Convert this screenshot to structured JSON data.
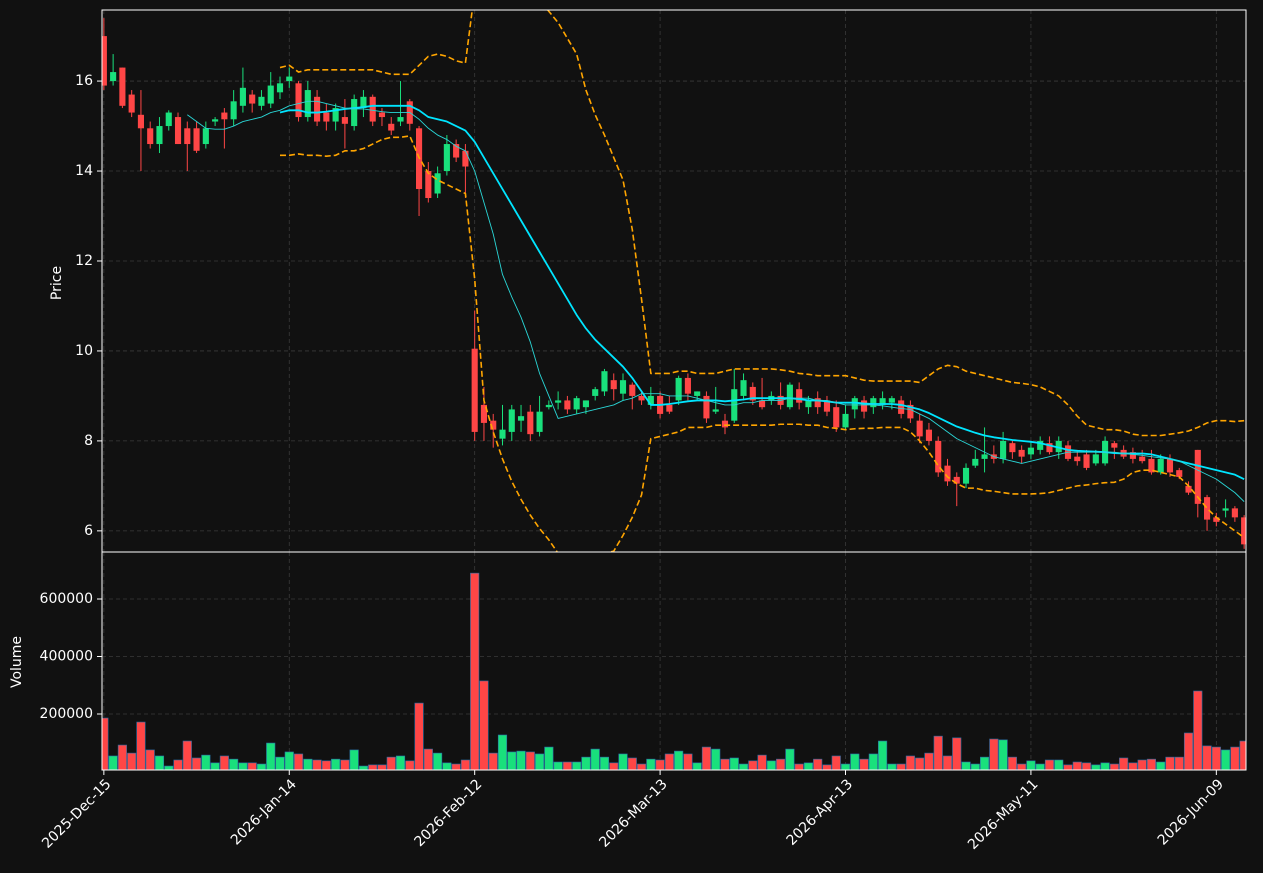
{
  "chart_data": {
    "type": "candlestick",
    "ylabel": "Price",
    "y2label": "Volume",
    "categories": [
      "2025-Dec-15",
      null,
      null,
      null,
      null,
      null,
      null,
      null,
      null,
      null,
      null,
      null,
      null,
      null,
      null,
      null,
      null,
      null,
      null,
      null,
      "2026-Jan-14",
      null,
      null,
      null,
      null,
      null,
      null,
      null,
      null,
      null,
      null,
      null,
      null,
      null,
      null,
      null,
      null,
      null,
      null,
      null,
      "2026-Feb-12",
      null,
      null,
      null,
      null,
      null,
      null,
      null,
      null,
      null,
      null,
      null,
      null,
      null,
      null,
      null,
      null,
      null,
      null,
      null,
      "2026-Mar-13",
      null,
      null,
      null,
      null,
      null,
      null,
      null,
      null,
      null,
      null,
      null,
      null,
      null,
      null,
      null,
      null,
      null,
      null,
      null,
      "2026-Apr-13",
      null,
      null,
      null,
      null,
      null,
      null,
      null,
      null,
      null,
      null,
      null,
      null,
      null,
      null,
      null,
      null,
      null,
      null,
      null,
      "2026-May-11",
      null,
      null,
      null,
      null,
      null,
      null,
      null,
      null,
      null,
      null,
      null,
      null,
      null,
      null,
      null,
      null,
      null,
      null,
      null,
      "2026-Jun-09",
      null,
      null,
      null
    ],
    "open": [
      17.0,
      16.0,
      16.3,
      15.7,
      15.25,
      14.95,
      14.6,
      15.0,
      15.2,
      14.95,
      14.95,
      14.6,
      15.1,
      15.3,
      15.15,
      15.45,
      15.7,
      15.45,
      15.5,
      15.75,
      16.0,
      15.95,
      15.2,
      15.65,
      15.3,
      15.1,
      15.2,
      15.0,
      15.4,
      15.65,
      15.3,
      15.05,
      15.1,
      15.55,
      14.95,
      14.0,
      13.5,
      14.0,
      14.6,
      14.45,
      10.05,
      8.8,
      8.45,
      8.05,
      8.2,
      8.45,
      8.65,
      8.2,
      8.75,
      8.85,
      8.9,
      8.7,
      8.75,
      9.0,
      9.1,
      9.35,
      9.05,
      9.25,
      9.0,
      8.8,
      9.0,
      8.8,
      8.9,
      9.4,
      9.0,
      9.0,
      8.65,
      8.45,
      8.45,
      9.0,
      9.2,
      8.9,
      8.9,
      9.0,
      8.75,
      9.15,
      8.75,
      8.95,
      8.9,
      8.75,
      8.3,
      8.7,
      8.9,
      8.75,
      8.8,
      8.85,
      8.9,
      8.8,
      8.45,
      8.25,
      8.0,
      7.45,
      7.2,
      7.05,
      7.45,
      7.6,
      7.7,
      7.6,
      7.95,
      7.8,
      7.7,
      7.8,
      7.95,
      7.75,
      7.9,
      7.65,
      7.7,
      7.5,
      7.5,
      7.95,
      7.8,
      7.75,
      7.65,
      7.6,
      7.3,
      7.6,
      7.35,
      7.0,
      7.8,
      6.75,
      6.3,
      6.45,
      6.5,
      6.3
    ],
    "high": [
      17.4,
      16.6,
      16.3,
      15.8,
      15.8,
      15.1,
      15.2,
      15.35,
      15.3,
      15.1,
      15.1,
      15.1,
      15.2,
      15.4,
      15.8,
      16.3,
      15.8,
      15.8,
      16.2,
      16.1,
      16.3,
      16.0,
      16.0,
      15.8,
      15.5,
      15.5,
      15.6,
      15.7,
      15.8,
      15.7,
      15.4,
      15.2,
      16.0,
      15.6,
      15.0,
      14.2,
      14.1,
      14.8,
      14.7,
      14.6,
      10.9,
      9.2,
      8.6,
      8.8,
      8.8,
      8.8,
      8.8,
      9.0,
      8.9,
      9.1,
      9.0,
      9.0,
      8.9,
      9.2,
      9.6,
      9.5,
      9.5,
      9.3,
      9.1,
      9.2,
      9.1,
      9.0,
      9.45,
      9.5,
      9.1,
      9.1,
      9.2,
      8.6,
      9.6,
      9.5,
      9.3,
      9.4,
      9.1,
      9.3,
      9.3,
      9.3,
      9.0,
      9.1,
      9.0,
      8.9,
      8.8,
      9.0,
      9.0,
      9.0,
      9.1,
      9.0,
      9.0,
      8.9,
      8.6,
      8.4,
      8.1,
      7.6,
      7.3,
      7.5,
      7.8,
      8.3,
      7.9,
      8.2,
      8.0,
      7.9,
      8.0,
      8.1,
      8.1,
      8.1,
      8.0,
      7.8,
      7.8,
      7.8,
      8.1,
      8.0,
      7.9,
      7.85,
      7.8,
      7.8,
      7.7,
      7.7,
      7.4,
      7.1,
      7.8,
      6.8,
      6.4,
      6.7,
      6.55,
      6.35
    ],
    "low": [
      15.8,
      15.9,
      15.4,
      15.2,
      14.0,
      14.5,
      14.4,
      14.9,
      14.6,
      14.0,
      14.4,
      14.5,
      15.0,
      14.5,
      15.0,
      15.3,
      15.3,
      15.35,
      15.4,
      15.6,
      15.85,
      15.1,
      15.1,
      15.0,
      14.9,
      14.9,
      14.5,
      14.9,
      15.2,
      15.0,
      15.0,
      14.8,
      15.0,
      14.9,
      13.0,
      13.3,
      13.4,
      13.9,
      14.2,
      13.4,
      8.0,
      8.0,
      7.85,
      7.9,
      8.0,
      8.2,
      8.0,
      8.1,
      8.7,
      8.7,
      8.6,
      8.6,
      8.6,
      8.9,
      9.0,
      8.9,
      8.9,
      8.7,
      8.8,
      8.7,
      8.5,
      8.6,
      8.8,
      8.9,
      8.9,
      8.4,
      8.6,
      8.15,
      8.4,
      8.9,
      8.8,
      8.7,
      8.8,
      8.7,
      8.7,
      8.7,
      8.6,
      8.6,
      8.55,
      8.2,
      8.25,
      8.5,
      8.5,
      8.6,
      8.7,
      8.7,
      8.5,
      8.4,
      7.95,
      7.9,
      7.2,
      7.0,
      6.55,
      6.95,
      7.4,
      7.3,
      7.5,
      7.5,
      7.6,
      7.5,
      7.6,
      7.7,
      7.7,
      7.6,
      7.55,
      7.45,
      7.35,
      7.45,
      7.45,
      7.6,
      7.6,
      7.5,
      7.5,
      7.25,
      7.25,
      7.2,
      7.15,
      6.8,
      6.3,
      6.0,
      6.1,
      6.3,
      6.2,
      5.6
    ],
    "close": [
      15.9,
      16.2,
      15.45,
      15.3,
      14.95,
      14.6,
      15.0,
      15.3,
      14.6,
      14.6,
      14.45,
      14.95,
      15.15,
      15.15,
      15.55,
      15.85,
      15.5,
      15.65,
      15.9,
      15.95,
      16.1,
      15.2,
      15.8,
      15.1,
      15.1,
      15.4,
      15.05,
      15.6,
      15.65,
      15.1,
      15.2,
      14.9,
      15.2,
      15.05,
      13.6,
      13.4,
      13.95,
      14.6,
      14.3,
      14.1,
      8.2,
      8.4,
      8.25,
      8.25,
      8.7,
      8.55,
      8.15,
      8.65,
      8.8,
      8.9,
      8.7,
      8.95,
      8.9,
      9.15,
      9.55,
      9.15,
      9.35,
      9.0,
      8.9,
      9.0,
      8.6,
      8.65,
      9.4,
      9.05,
      9.1,
      8.5,
      8.7,
      8.3,
      9.15,
      9.35,
      8.9,
      8.75,
      9.0,
      8.8,
      9.25,
      8.85,
      8.9,
      8.75,
      8.65,
      8.3,
      8.6,
      8.95,
      8.65,
      8.95,
      8.95,
      8.95,
      8.6,
      8.5,
      8.1,
      8.0,
      7.3,
      7.1,
      7.05,
      7.4,
      7.6,
      7.7,
      7.6,
      8.0,
      7.75,
      7.65,
      7.85,
      8.0,
      7.75,
      8.0,
      7.6,
      7.55,
      7.4,
      7.7,
      8.0,
      7.85,
      7.65,
      7.6,
      7.55,
      7.3,
      7.6,
      7.3,
      7.2,
      6.85,
      6.6,
      6.25,
      6.2,
      6.5,
      6.3,
      5.7
    ],
    "volume": [
      186000,
      54000,
      92000,
      64000,
      172000,
      75000,
      54000,
      19000,
      40000,
      106000,
      47000,
      57000,
      30000,
      54000,
      43000,
      30000,
      30000,
      26000,
      99000,
      50000,
      68000,
      61000,
      43000,
      40000,
      37000,
      43000,
      40000,
      75000,
      19000,
      23000,
      23000,
      50000,
      54000,
      37000,
      238000,
      78000,
      64000,
      30000,
      26000,
      40000,
      690000,
      315000,
      64000,
      127000,
      68000,
      71000,
      68000,
      61000,
      85000,
      33000,
      33000,
      33000,
      50000,
      78000,
      50000,
      30000,
      61000,
      47000,
      26000,
      43000,
      40000,
      61000,
      71000,
      61000,
      30000,
      85000,
      78000,
      43000,
      47000,
      26000,
      37000,
      57000,
      37000,
      43000,
      78000,
      26000,
      30000,
      43000,
      23000,
      54000,
      26000,
      61000,
      43000,
      61000,
      106000,
      26000,
      26000,
      54000,
      47000,
      64000,
      123000,
      54000,
      117000,
      33000,
      26000,
      50000,
      113000,
      110000,
      50000,
      26000,
      37000,
      26000,
      40000,
      40000,
      23000,
      33000,
      30000,
      23000,
      30000,
      26000,
      47000,
      30000,
      40000,
      43000,
      33000,
      50000,
      50000,
      134000,
      280000,
      89000,
      85000,
      75000,
      85000,
      106000
    ],
    "lines": [
      {
        "color": "#00e5ff",
        "style": "thick",
        "values": [
          null,
          null,
          null,
          null,
          null,
          null,
          null,
          null,
          null,
          null,
          null,
          null,
          null,
          null,
          null,
          null,
          null,
          null,
          null,
          15.3,
          15.35,
          15.35,
          15.3,
          15.3,
          15.32,
          15.35,
          15.38,
          15.4,
          15.42,
          15.45,
          15.45,
          15.45,
          15.45,
          15.45,
          15.35,
          15.2,
          15.15,
          15.1,
          15.0,
          14.9,
          14.65,
          14.3,
          13.95,
          13.6,
          13.25,
          12.9,
          12.55,
          12.2,
          11.85,
          11.5,
          11.15,
          10.8,
          10.5,
          10.25,
          10.05,
          9.85,
          9.65,
          9.4,
          9.1,
          8.8,
          8.8,
          8.82,
          8.85,
          8.88,
          8.9,
          8.9,
          8.9,
          8.88,
          8.9,
          8.92,
          8.95,
          8.95,
          8.95,
          8.95,
          8.95,
          8.93,
          8.9,
          8.9,
          8.88,
          8.85,
          8.85,
          8.85,
          8.83,
          8.82,
          8.82,
          8.82,
          8.8,
          8.75,
          8.7,
          8.62,
          8.52,
          8.42,
          8.32,
          8.25,
          8.18,
          8.12,
          8.08,
          8.05,
          8.02,
          8.0,
          7.98,
          7.95,
          7.9,
          7.85,
          7.8,
          7.78,
          7.77,
          7.76,
          7.75,
          7.73,
          7.72,
          7.72,
          7.72,
          7.7,
          7.65,
          7.6,
          7.55,
          7.5,
          7.45,
          7.4,
          7.35,
          7.3,
          7.25,
          7.15
        ]
      },
      {
        "color": "#2ad6d6",
        "style": "thin",
        "values": [
          null,
          null,
          null,
          null,
          null,
          null,
          null,
          null,
          null,
          15.25,
          15.1,
          14.95,
          14.93,
          14.93,
          15.0,
          15.1,
          15.15,
          15.2,
          15.3,
          15.35,
          15.45,
          15.5,
          15.55,
          15.55,
          15.5,
          15.45,
          15.4,
          15.38,
          15.38,
          15.35,
          15.32,
          15.3,
          15.3,
          15.3,
          15.15,
          14.95,
          14.8,
          14.7,
          14.55,
          14.45,
          14.0,
          13.3,
          12.6,
          11.7,
          11.2,
          10.75,
          10.2,
          9.5,
          9.0,
          8.5,
          8.55,
          8.6,
          8.65,
          8.7,
          8.75,
          8.8,
          8.9,
          8.95,
          9.05,
          9.05,
          9.05,
          9.0,
          9.0,
          9.0,
          8.95,
          8.9,
          8.85,
          8.8,
          8.8,
          8.85,
          8.85,
          8.9,
          8.9,
          8.9,
          8.95,
          8.95,
          8.95,
          8.9,
          8.9,
          8.85,
          8.8,
          8.8,
          8.8,
          8.8,
          8.78,
          8.75,
          8.72,
          8.7,
          8.6,
          8.5,
          8.35,
          8.2,
          8.05,
          7.95,
          7.85,
          7.75,
          7.65,
          7.6,
          7.55,
          7.5,
          7.55,
          7.6,
          7.65,
          7.7,
          7.75,
          7.75,
          7.75,
          7.75,
          7.75,
          7.75,
          7.72,
          7.7,
          7.68,
          7.65,
          7.62,
          7.6,
          7.55,
          7.45,
          7.35,
          7.25,
          7.15,
          7.0,
          6.85,
          6.65
        ]
      },
      {
        "color": "#ffa500",
        "style": "dashed",
        "values": [
          null,
          null,
          null,
          null,
          null,
          null,
          null,
          null,
          null,
          null,
          null,
          null,
          null,
          null,
          null,
          null,
          null,
          null,
          null,
          16.3,
          16.35,
          16.2,
          16.25,
          16.25,
          16.25,
          16.25,
          16.25,
          16.25,
          16.25,
          16.25,
          16.2,
          16.15,
          16.15,
          16.15,
          16.35,
          16.55,
          16.6,
          16.55,
          16.45,
          16.4,
          18.0,
          18.4,
          18.6,
          18.6,
          18.5,
          18.3,
          18.0,
          17.8,
          17.55,
          17.3,
          16.95,
          16.6,
          15.8,
          15.25,
          14.8,
          14.3,
          13.8,
          12.7,
          11.15,
          9.5,
          9.5,
          9.5,
          9.55,
          9.55,
          9.5,
          9.5,
          9.5,
          9.55,
          9.6,
          9.6,
          9.6,
          9.6,
          9.6,
          9.58,
          9.55,
          9.5,
          9.48,
          9.45,
          9.45,
          9.45,
          9.45,
          9.4,
          9.35,
          9.33,
          9.33,
          9.33,
          9.33,
          9.33,
          9.3,
          9.45,
          9.6,
          9.68,
          9.65,
          9.55,
          9.5,
          9.45,
          9.4,
          9.35,
          9.3,
          9.28,
          9.25,
          9.2,
          9.1,
          9.0,
          8.8,
          8.55,
          8.35,
          8.3,
          8.25,
          8.25,
          8.22,
          8.15,
          8.12,
          8.12,
          8.12,
          8.15,
          8.18,
          8.22,
          8.3,
          8.4,
          8.45,
          8.45,
          8.43,
          8.45
        ]
      },
      {
        "color": "#ffa500",
        "style": "dashed",
        "values": [
          null,
          null,
          null,
          null,
          null,
          null,
          null,
          null,
          null,
          null,
          null,
          null,
          null,
          null,
          null,
          null,
          null,
          null,
          null,
          14.35,
          14.35,
          14.38,
          14.35,
          14.35,
          14.33,
          14.35,
          14.45,
          14.45,
          14.5,
          14.6,
          14.7,
          14.75,
          14.75,
          14.78,
          14.3,
          13.95,
          13.8,
          13.7,
          13.6,
          13.5,
          11.6,
          8.9,
          8.2,
          7.6,
          7.1,
          6.7,
          6.35,
          6.05,
          5.8,
          5.5,
          5.3,
          5.25,
          5.3,
          5.45,
          5.5,
          5.55,
          5.9,
          6.3,
          6.8,
          8.05,
          8.1,
          8.15,
          8.2,
          8.3,
          8.3,
          8.3,
          8.35,
          8.35,
          8.35,
          8.35,
          8.35,
          8.35,
          8.35,
          8.37,
          8.37,
          8.37,
          8.35,
          8.35,
          8.3,
          8.28,
          8.25,
          8.27,
          8.28,
          8.28,
          8.3,
          8.3,
          8.3,
          8.2,
          8.0,
          7.75,
          7.45,
          7.2,
          7.05,
          6.95,
          6.95,
          6.9,
          6.88,
          6.85,
          6.82,
          6.82,
          6.82,
          6.83,
          6.85,
          6.9,
          6.95,
          7.0,
          7.02,
          7.05,
          7.07,
          7.08,
          7.15,
          7.3,
          7.35,
          7.35,
          7.3,
          7.25,
          7.2,
          7.0,
          6.75,
          6.5,
          6.3,
          6.15,
          6.0,
          5.85
        ]
      }
    ],
    "up_color": "#19e07c",
    "down_color": "#ff4646",
    "xlim": [
      -0.2,
      123.2
    ],
    "ylim": [
      5.53,
      17.58
    ],
    "yticks": [
      6,
      8,
      10,
      12,
      14,
      16
    ],
    "y2lim": [
      5200,
      763500
    ],
    "y2ticks": [
      200000,
      400000,
      600000
    ],
    "grid": true
  }
}
